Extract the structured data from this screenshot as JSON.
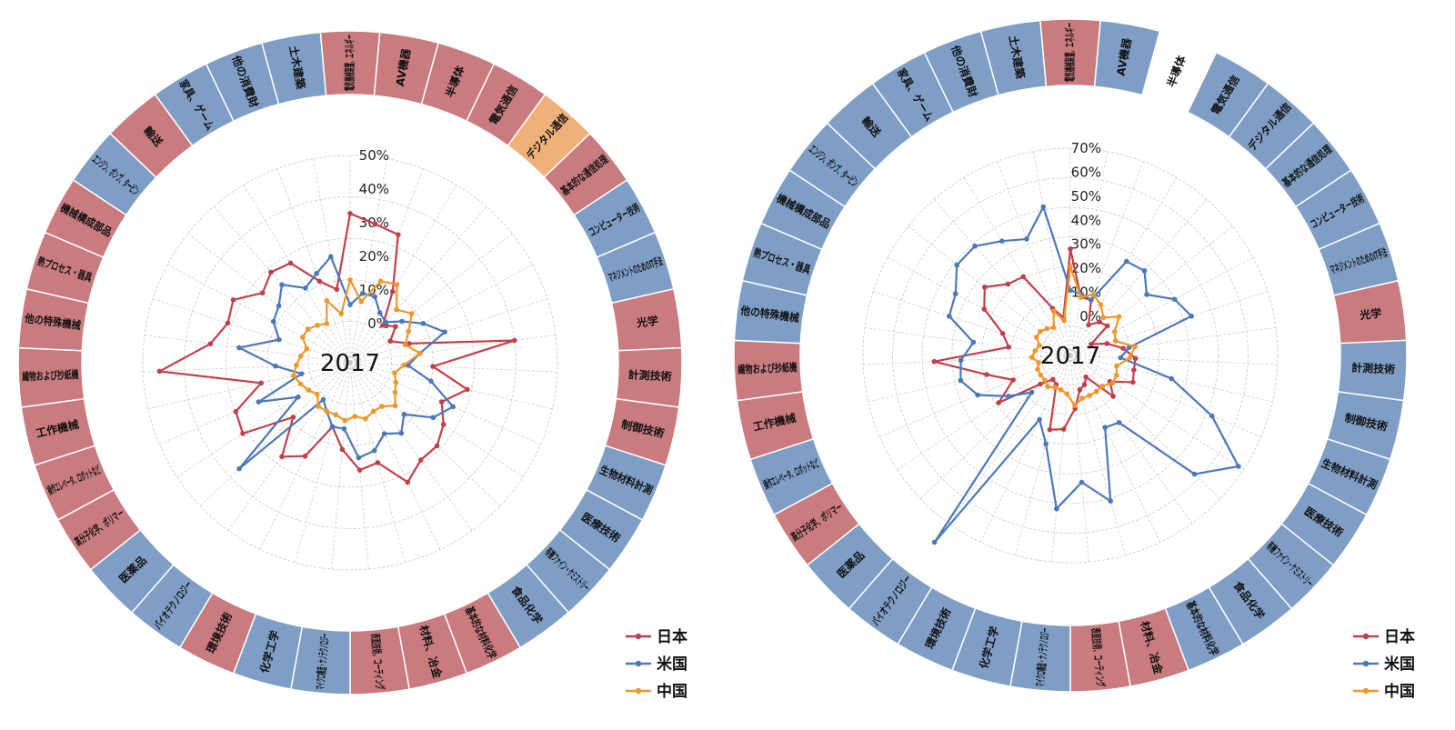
{
  "colors": {
    "jp_segment": "#c97b7e",
    "us_segment": "#7f9ec6",
    "cn_segment": "#f0b07a",
    "japan_line": "#c0404a",
    "us_line": "#4a78b8",
    "china_line": "#f0962a",
    "grid": "#c8c8c8"
  },
  "categories": [
    "電気機械装置、エネルギー",
    "AV機器",
    "半導体",
    "電気通信",
    "デジタル通信",
    "基本的な通信処理",
    "コンピューター技術",
    "マネジメントのためのIT手法",
    "光学",
    "計測技術",
    "制御技術",
    "生物材料計測",
    "医療技術",
    "有機ファイン・ケミストリー",
    "食品化学",
    "基本的な材料化学",
    "材料、冶金",
    "表面技術、コーティング",
    "マイクロ構造・ナノテクノロジー",
    "化学工学",
    "環境技術",
    "バイオテクノロジー",
    "医薬品",
    "高分子化学、ポリマー",
    "操作エレベータ、ロボットなど",
    "工作機械",
    "繊物および抄紙機",
    "他の特殊機械",
    "熱プロセス・器具",
    "機械構成部品",
    "エンジン、ポンプ、タービン",
    "輸送",
    "家具、ゲーム",
    "他の消費財",
    "土木建築"
  ],
  "chart_data": [
    {
      "type": "radar",
      "center_label": "2017",
      "rmax": 50,
      "ticks": [
        "0%",
        "10%",
        "20%",
        "30%",
        "40%",
        "50%"
      ],
      "tick_values": [
        0,
        10,
        20,
        30,
        40,
        50
      ],
      "ring_leader": [
        "jp",
        "jp",
        "jp",
        "jp",
        "cn",
        "jp",
        "us",
        "us",
        "jp",
        "jp",
        "jp",
        "us",
        "us",
        "us",
        "us",
        "jp",
        "jp",
        "jp",
        "us",
        "us",
        "jp",
        "us",
        "us",
        "jp",
        "jp",
        "jp",
        "jp",
        "jp",
        "jp",
        "jp",
        "us",
        "jp",
        "us",
        "us",
        "us"
      ],
      "blank_segments": [],
      "series": [
        {
          "name": "日本",
          "values": [
            36,
            34,
            33,
            20,
            12,
            14,
            11,
            15,
            40,
            20,
            29,
            24,
            27,
            29,
            29,
            32,
            25,
            26,
            21,
            16,
            25,
            28,
            19,
            31,
            30,
            22,
            46,
            34,
            31,
            32,
            27,
            29,
            28,
            21,
            18
          ]
        },
        {
          "name": "米国",
          "values": [
            14,
            17,
            17,
            14,
            13,
            16,
            20,
            24,
            17,
            14,
            20,
            27,
            24,
            18,
            21,
            19,
            22,
            23,
            16,
            16,
            13,
            11,
            37,
            15,
            24,
            12,
            18,
            27,
            18,
            21,
            22,
            25,
            21,
            23,
            26
          ]
        },
        {
          "name": "中国",
          "values": [
            20,
            15,
            21,
            22,
            17,
            19,
            16,
            14,
            17,
            13,
            11,
            12,
            13,
            15,
            13,
            13,
            14,
            13,
            14,
            13,
            13,
            13,
            11,
            12,
            13,
            14,
            13,
            12,
            11,
            13,
            13,
            12,
            11,
            16,
            12
          ]
        }
      ]
    },
    {
      "type": "radar",
      "center_label": "2017",
      "rmax": 70,
      "ticks": [
        "0%",
        "10%",
        "20%",
        "30%",
        "40%",
        "50%",
        "60%",
        "70%"
      ],
      "tick_values": [
        0,
        10,
        20,
        30,
        40,
        50,
        60,
        70
      ],
      "ring_leader": [
        "jp",
        "us",
        "none",
        "us",
        "us",
        "us",
        "us",
        "us",
        "jp",
        "us",
        "us",
        "us",
        "us",
        "us",
        "us",
        "us",
        "jp",
        "jp",
        "us",
        "us",
        "us",
        "us",
        "us",
        "jp",
        "us",
        "jp",
        "jp",
        "us",
        "us",
        "us",
        "us",
        "us",
        "us",
        "us",
        "us"
      ],
      "blank_segments": [
        2
      ],
      "series": [
        {
          "name": "日本",
          "values": [
            36,
            20,
            20,
            12,
            15,
            16,
            8,
            13,
            18,
            22,
            22,
            23,
            16,
            20,
            9,
            11,
            12,
            18,
            25,
            26,
            11,
            10,
            14,
            29,
            21,
            29,
            46,
            21,
            24,
            33,
            37,
            32,
            31,
            17,
            13
          ]
        },
        {
          "name": "米国",
          "values": [
            22,
            21,
            20,
            37,
            38,
            33,
            40,
            43,
            20,
            17,
            35,
            52,
            68,
            58,
            28,
            27,
            51,
            43,
            52,
            31,
            24,
            78,
            18,
            25,
            34,
            38,
            37,
            33,
            43,
            44,
            49,
            49,
            45,
            42,
            51
          ]
        },
        {
          "name": "中国",
          "values": [
            30,
            20,
            22,
            20,
            17,
            21,
            17,
            16,
            22,
            20,
            16,
            17,
            17,
            15,
            15,
            15,
            15,
            17,
            13,
            12,
            12,
            13,
            12,
            12,
            12,
            11,
            13,
            12,
            11,
            13,
            13,
            12,
            11,
            16,
            12
          ]
        }
      ]
    }
  ]
}
